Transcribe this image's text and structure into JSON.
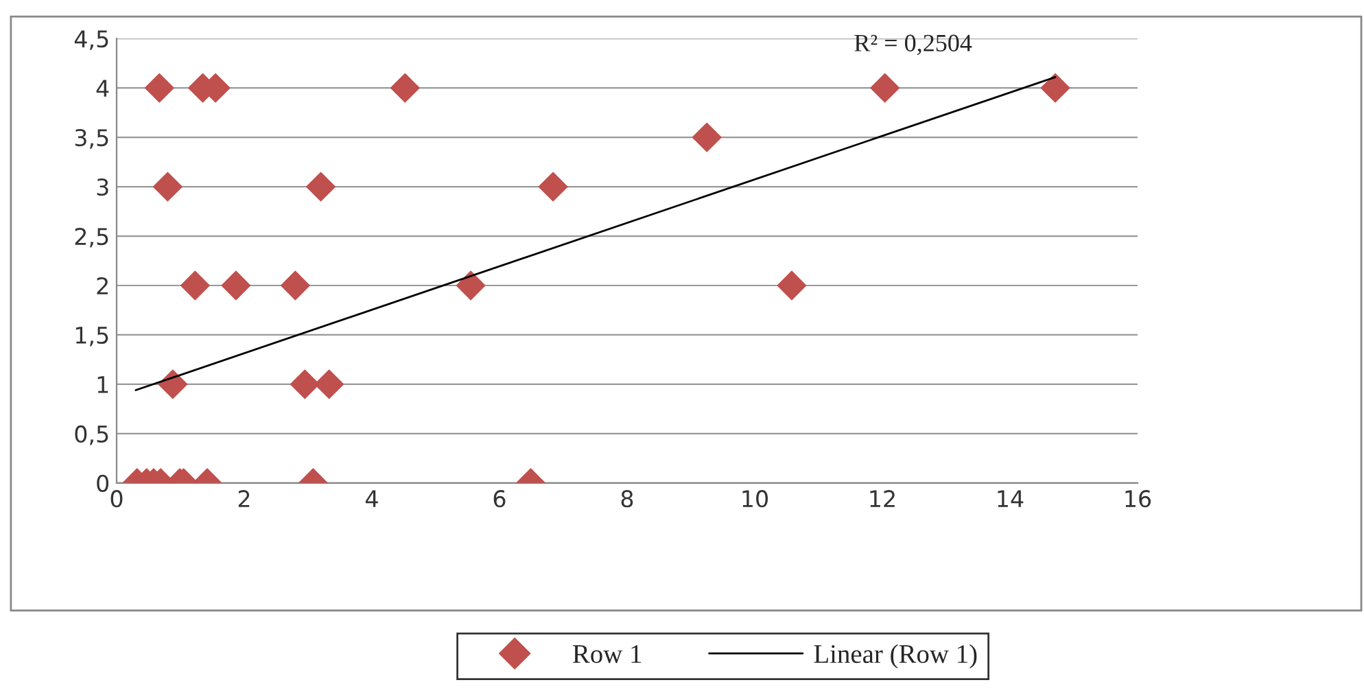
{
  "chart_data": {
    "type": "scatter",
    "x": [
      0.67,
      1.35,
      1.55,
      4.52,
      12.04,
      14.71,
      9.25,
      0.8,
      3.2,
      6.84,
      1.23,
      1.87,
      2.8,
      5.55,
      10.58,
      0.88,
      2.95,
      3.33,
      0.32,
      0.47,
      0.58,
      0.69,
      0.99,
      1.05,
      1.42,
      3.08,
      6.49
    ],
    "series": [
      {
        "name": "Row 1",
        "color": "#c0504d",
        "marker": "diamond",
        "values": [
          4,
          4,
          4,
          4,
          4,
          4,
          3.5,
          3,
          3,
          3,
          2,
          2,
          2,
          2,
          2,
          1,
          1,
          1,
          0,
          0,
          0,
          0,
          0,
          0,
          0,
          0,
          0
        ]
      },
      {
        "name": "Linear (Row 1)",
        "type": "line",
        "color": "#000000",
        "marker": "none",
        "line_style": "solid",
        "x": [
          0.3,
          14.71
        ],
        "values": [
          0.94,
          4.11
        ]
      }
    ],
    "xlim": [
      0,
      16
    ],
    "xticks": [
      0,
      2,
      4,
      6,
      8,
      10,
      12,
      14,
      16
    ],
    "ylim": [
      0,
      4.5
    ],
    "yticks": [
      0,
      {
        "value": 0.5,
        "label": "0,5"
      },
      1,
      {
        "value": 1.5,
        "label": "1,5"
      },
      2,
      {
        "value": 2.5,
        "label": "2,5"
      },
      3,
      {
        "value": 3.5,
        "label": "3,5"
      },
      4,
      {
        "value": 4.5,
        "label": "4,5"
      }
    ],
    "grid": "y",
    "legend": "bottom",
    "annotations": [
      "R² = 0,2504"
    ]
  }
}
